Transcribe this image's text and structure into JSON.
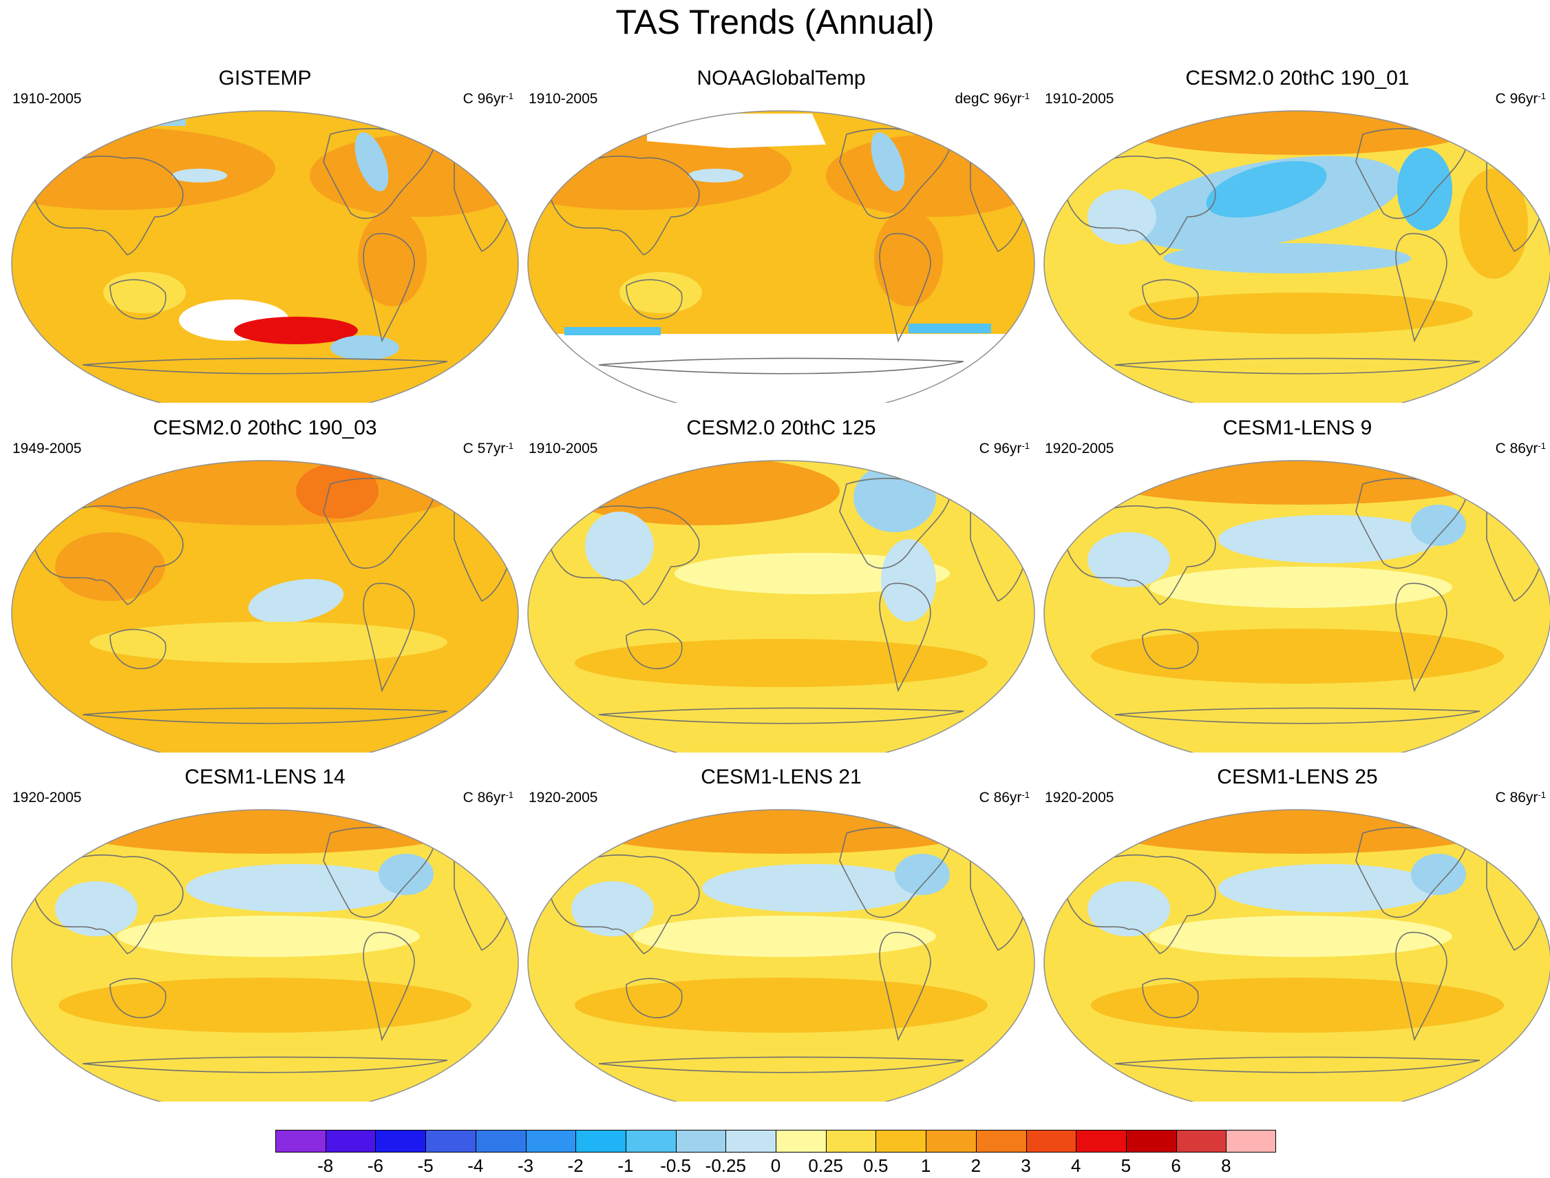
{
  "title": "TAS Trends (Annual)",
  "panels": [
    {
      "title": "GISTEMP",
      "period": "1910-2005",
      "units_prefix": "C 96yr",
      "units_exp": "-1",
      "style": "obs1"
    },
    {
      "title": "NOAAGlobalTemp",
      "period": "1910-2005",
      "units_prefix": "degC 96yr",
      "units_exp": "-1",
      "style": "obs2"
    },
    {
      "title": "CESM2.0 20thC 190_01",
      "period": "1910-2005",
      "units_prefix": "C 96yr",
      "units_exp": "-1",
      "style": "cool"
    },
    {
      "title": "CESM2.0 20thC 190_03",
      "period": "1949-2005",
      "units_prefix": "C 57yr",
      "units_exp": "-1",
      "style": "warm"
    },
    {
      "title": "CESM2.0 20thC 125",
      "period": "1910-2005",
      "units_prefix": "C 96yr",
      "units_exp": "-1",
      "style": "mixed"
    },
    {
      "title": "CESM1-LENS 9",
      "period": "1920-2005",
      "units_prefix": "C 86yr",
      "units_exp": "-1",
      "style": "lens"
    },
    {
      "title": "CESM1-LENS 14",
      "period": "1920-2005",
      "units_prefix": "C 86yr",
      "units_exp": "-1",
      "style": "lens"
    },
    {
      "title": "CESM1-LENS 21",
      "period": "1920-2005",
      "units_prefix": "C 86yr",
      "units_exp": "-1",
      "style": "lens"
    },
    {
      "title": "CESM1-LENS 25",
      "period": "1920-2005",
      "units_prefix": "C 86yr",
      "units_exp": "-1",
      "style": "lens"
    }
  ],
  "colorbar": {
    "labels": [
      "-8",
      "-6",
      "-5",
      "-4",
      "-3",
      "-2",
      "-1",
      "-0.5",
      "-0.25",
      "0",
      "0.25",
      "0.5",
      "1",
      "2",
      "3",
      "4",
      "5",
      "6",
      "8"
    ],
    "colors": [
      "#8a2be2",
      "#4b14e8",
      "#1a1af0",
      "#3a5ce6",
      "#2f78ea",
      "#2d94f3",
      "#1fb4f5",
      "#52c3f2",
      "#9dd3ee",
      "#c4e4f4",
      "#fffaa0",
      "#fbe04a",
      "#f9c020",
      "#f7a01c",
      "#f57a18",
      "#f04a14",
      "#e80c0c",
      "#c40000",
      "#d83a3a",
      "#ffb4b4"
    ]
  },
  "palette": {
    "orange": "#f7a01c",
    "gold": "#f9c020",
    "yellow": "#fbe04a",
    "pale_yellow": "#fffaa0",
    "pale_blue": "#c4e4f4",
    "light_blue": "#9dd3ee",
    "blue": "#52c3f2",
    "deep_orange": "#f57a18",
    "red": "#e80c0c"
  }
}
